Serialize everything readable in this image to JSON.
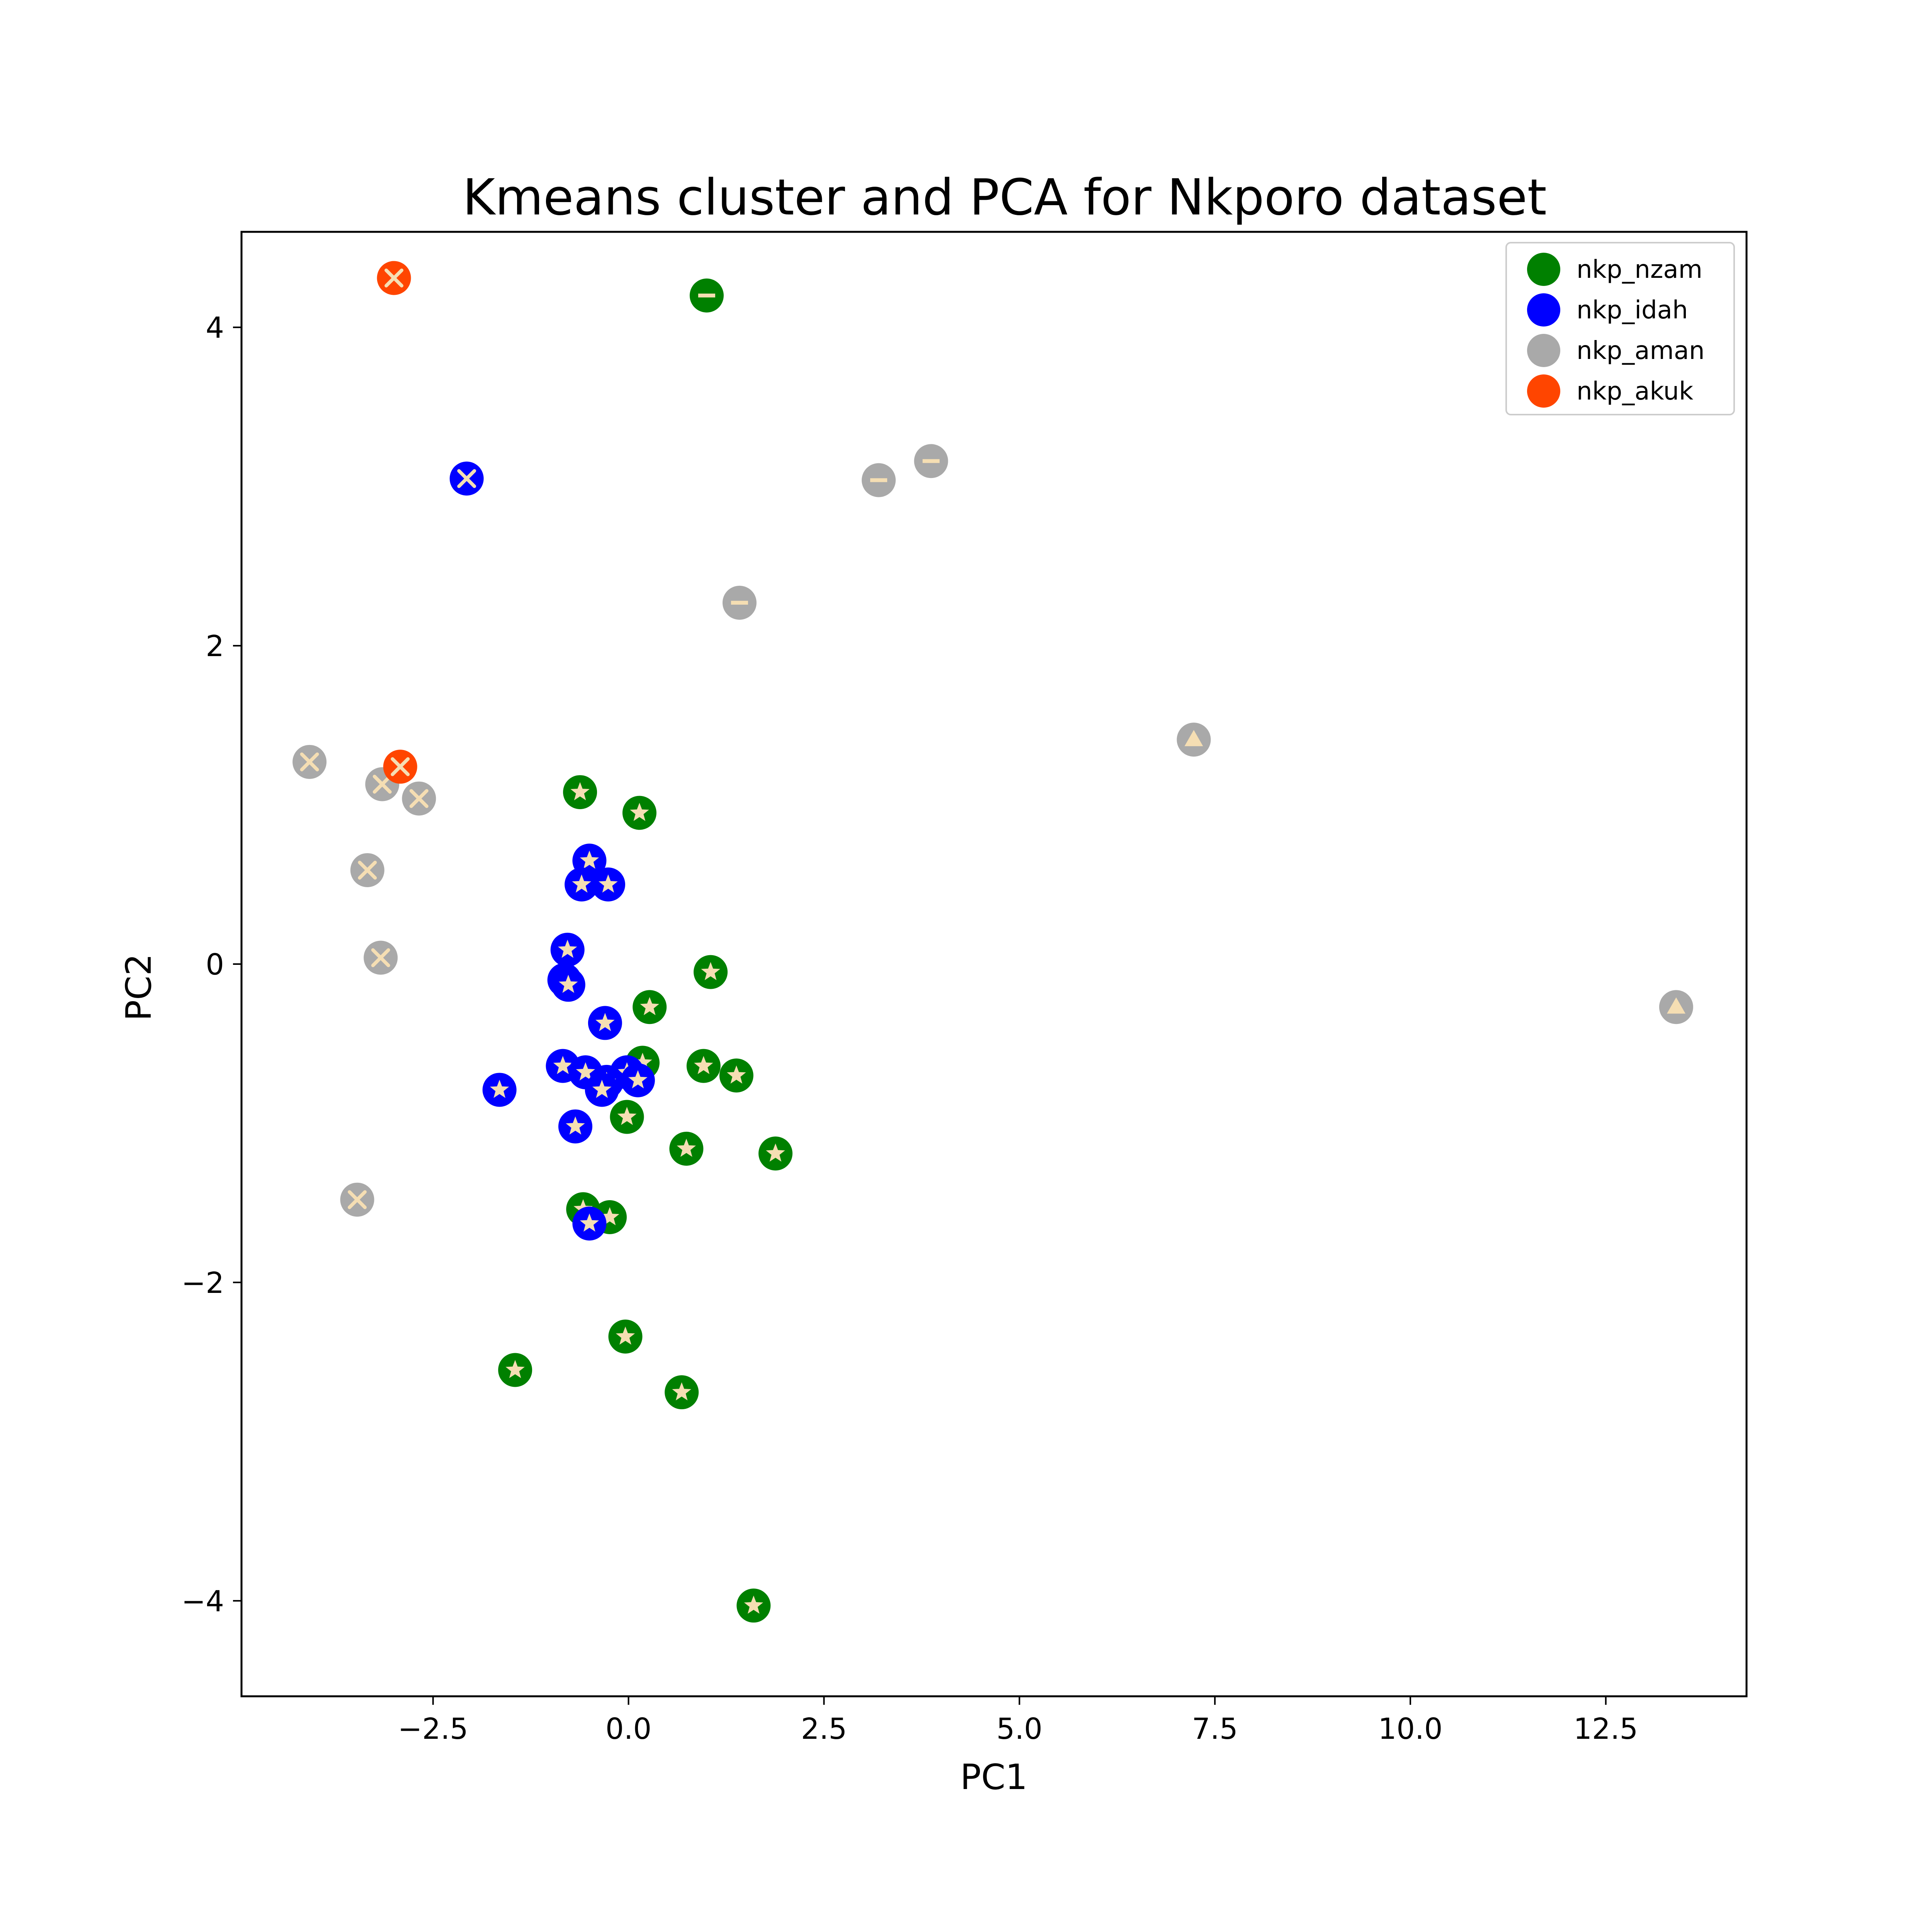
{
  "chart_data": {
    "type": "scatter",
    "title": "Kmeans cluster and PCA for Nkporo dataset",
    "xlabel": "PC1",
    "ylabel": "PC2",
    "xlim": [
      -4.95,
      14.3
    ],
    "ylim": [
      -4.6,
      4.6
    ],
    "xticks": [
      -2.5,
      0.0,
      2.5,
      5.0,
      7.5,
      10.0,
      12.5
    ],
    "xtick_labels": [
      "−2.5",
      "0.0",
      "2.5",
      "5.0",
      "7.5",
      "10.0",
      "12.5"
    ],
    "yticks": [
      -4,
      -2,
      0,
      2,
      4
    ],
    "ytick_labels": [
      "−4",
      "−2",
      "0",
      "2",
      "4"
    ],
    "grid": false,
    "legend_position": "top-right",
    "marker_fill": "#f5deb3",
    "series": [
      {
        "name": "nkp_nzam",
        "color": "#008000",
        "points": [
          {
            "x": 1.0,
            "y": 4.2,
            "m": "minus"
          },
          {
            "x": -0.62,
            "y": 1.08,
            "m": "star"
          },
          {
            "x": 0.14,
            "y": 0.95,
            "m": "star"
          },
          {
            "x": 1.05,
            "y": -0.05,
            "m": "star"
          },
          {
            "x": 0.27,
            "y": -0.27,
            "m": "star"
          },
          {
            "x": 0.18,
            "y": -0.62,
            "m": "star"
          },
          {
            "x": 0.96,
            "y": -0.64,
            "m": "star"
          },
          {
            "x": 1.38,
            "y": -0.7,
            "m": "star"
          },
          {
            "x": -0.02,
            "y": -0.96,
            "m": "star"
          },
          {
            "x": 0.74,
            "y": -1.16,
            "m": "star"
          },
          {
            "x": 1.88,
            "y": -1.19,
            "m": "star"
          },
          {
            "x": -0.58,
            "y": -1.54,
            "m": "star"
          },
          {
            "x": -0.24,
            "y": -1.59,
            "m": "star"
          },
          {
            "x": -0.04,
            "y": -2.34,
            "m": "star"
          },
          {
            "x": -1.45,
            "y": -2.55,
            "m": "star"
          },
          {
            "x": 0.68,
            "y": -2.69,
            "m": "star"
          },
          {
            "x": 1.6,
            "y": -4.03,
            "m": "star"
          }
        ]
      },
      {
        "name": "nkp_idah",
        "color": "#0000ff",
        "points": [
          {
            "x": -2.07,
            "y": 3.05,
            "m": "x"
          },
          {
            "x": -0.5,
            "y": 0.65,
            "m": "star"
          },
          {
            "x": -0.6,
            "y": 0.5,
            "m": "star"
          },
          {
            "x": -0.26,
            "y": 0.5,
            "m": "star"
          },
          {
            "x": -0.78,
            "y": 0.09,
            "m": "star"
          },
          {
            "x": -0.82,
            "y": -0.1,
            "m": "star"
          },
          {
            "x": -0.77,
            "y": -0.13,
            "m": "star"
          },
          {
            "x": -0.3,
            "y": -0.37,
            "m": "star"
          },
          {
            "x": -0.84,
            "y": -0.64,
            "m": "star"
          },
          {
            "x": -0.55,
            "y": -0.68,
            "m": "star"
          },
          {
            "x": -0.02,
            "y": -0.68,
            "m": "star"
          },
          {
            "x": 0.12,
            "y": -0.73,
            "m": "star"
          },
          {
            "x": -0.28,
            "y": -0.74,
            "m": "star"
          },
          {
            "x": -0.34,
            "y": -0.79,
            "m": "star"
          },
          {
            "x": -1.65,
            "y": -0.79,
            "m": "star"
          },
          {
            "x": -0.68,
            "y": -1.02,
            "m": "star"
          },
          {
            "x": -0.5,
            "y": -1.63,
            "m": "star"
          }
        ]
      },
      {
        "name": "nkp_aman",
        "color": "#a9a9a9",
        "points": [
          {
            "x": 3.87,
            "y": 3.16,
            "m": "minus"
          },
          {
            "x": 3.2,
            "y": 3.04,
            "m": "minus"
          },
          {
            "x": 1.42,
            "y": 2.27,
            "m": "minus"
          },
          {
            "x": 7.23,
            "y": 1.41,
            "m": "triangle"
          },
          {
            "x": 13.4,
            "y": -0.27,
            "m": "triangle"
          },
          {
            "x": -4.08,
            "y": 1.27,
            "m": "x"
          },
          {
            "x": -3.15,
            "y": 1.13,
            "m": "x"
          },
          {
            "x": -2.68,
            "y": 1.04,
            "m": "x"
          },
          {
            "x": -3.34,
            "y": 0.59,
            "m": "x"
          },
          {
            "x": -3.17,
            "y": 0.04,
            "m": "x"
          },
          {
            "x": -3.47,
            "y": -1.48,
            "m": "x"
          }
        ]
      },
      {
        "name": "nkp_akuk",
        "color": "#ff4500",
        "points": [
          {
            "x": -3.0,
            "y": 4.31,
            "m": "x"
          },
          {
            "x": -2.92,
            "y": 1.24,
            "m": "x"
          }
        ]
      }
    ]
  }
}
